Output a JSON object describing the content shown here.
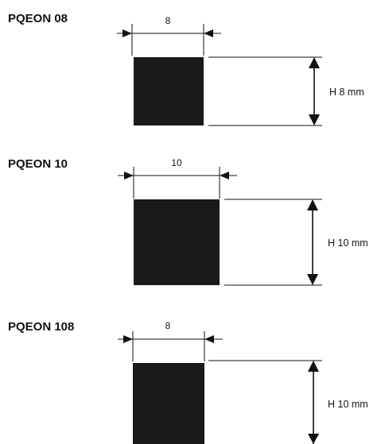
{
  "profiles": [
    {
      "title": "PQEON 08",
      "width_label": "8",
      "height_label": "H 8 mm"
    },
    {
      "title": "PQEON 10",
      "width_label": "10",
      "height_label": "H 10 mm"
    },
    {
      "title": "PQEON 108",
      "width_label": "8",
      "height_label": "H 10 mm"
    }
  ]
}
